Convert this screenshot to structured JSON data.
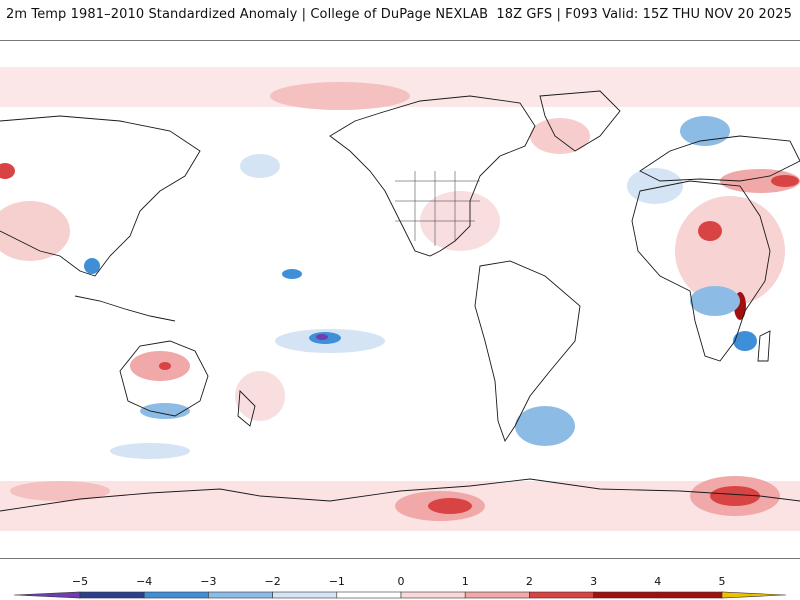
{
  "header": {
    "left_title": "2m Temp 1981–2010 Standardized Anomaly | College of DuPage NEXLAB",
    "right_title": "18Z GFS | F093 Valid: 15Z THU NOV 20 2025"
  },
  "map": {
    "projection": "equirectangular",
    "center_longitude": "180"
  },
  "legend": {
    "ticks": [
      "−5",
      "−4",
      "−3",
      "−2",
      "−1",
      "0",
      "1",
      "2",
      "3",
      "4",
      "5"
    ],
    "bins": [
      {
        "color": "#6f3fb0"
      },
      {
        "color": "#2c3f8c"
      },
      {
        "color": "#3f8fd8"
      },
      {
        "color": "#8cbce6"
      },
      {
        "color": "#d4e4f4"
      },
      {
        "color": "#ffffff"
      },
      {
        "color": "#f8d8d8"
      },
      {
        "color": "#f0a8a8"
      },
      {
        "color": "#d84444"
      },
      {
        "color": "#a01010"
      },
      {
        "color": "#f0c000"
      }
    ]
  }
}
